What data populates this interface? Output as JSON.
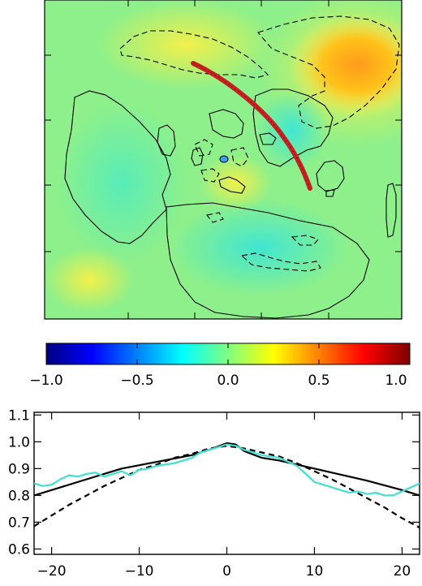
{
  "chart_data": [
    {
      "type": "heatmap",
      "title": "",
      "xlabel": "",
      "ylabel": "",
      "grid": false,
      "description_of_features": {
        "contours": [
          "solid",
          "dashed"
        ],
        "track": "red curved line"
      }
    },
    {
      "type": "heatmap",
      "title": "",
      "xlabel": "",
      "ylabel": "",
      "colormap": [
        "#00007f",
        "#0000ff",
        "#0080ff",
        "#00ffff",
        "#80ff80",
        "#ffff00",
        "#ff8000",
        "#ff0000",
        "#7f0000"
      ],
      "range": [
        -1.0,
        1.0
      ],
      "tick_labels": [
        "−1.0",
        "−0.5",
        "0.0",
        "0.5",
        "1.0"
      ],
      "tick_values": [
        -1.0,
        -0.5,
        0.0,
        0.5,
        1.0
      ]
    },
    {
      "type": "line",
      "title": "",
      "xlabel": "",
      "ylabel": "",
      "xlim": [
        -22,
        22
      ],
      "ylim": [
        0.58,
        1.11
      ],
      "xticks": [
        -20,
        -10,
        0,
        10,
        20
      ],
      "xtick_labels": [
        "−20",
        "−10",
        "0",
        "10",
        "20"
      ],
      "yticks": [
        0.6,
        0.7,
        0.8,
        0.9,
        1.0,
        1.1
      ],
      "ytick_labels": [
        "0.6",
        "0.7",
        "0.8",
        "0.9",
        "1.0",
        "1.1"
      ],
      "series": [
        {
          "color": "#000000",
          "dash": "solid",
          "x": [
            -22,
            -20,
            -16,
            -12,
            -8,
            -4,
            -2,
            0,
            1,
            2,
            4,
            6,
            8,
            12,
            16,
            20,
            22
          ],
          "y": [
            0.8,
            0.82,
            0.86,
            0.9,
            0.925,
            0.95,
            0.97,
            0.995,
            0.99,
            0.965,
            0.94,
            0.93,
            0.915,
            0.885,
            0.855,
            0.82,
            0.8
          ]
        },
        {
          "color": "#000000",
          "dash": "dashed",
          "x": [
            -22,
            -20,
            -18,
            -16,
            -14,
            -12,
            -10,
            -8,
            -6,
            -4,
            -2,
            0,
            2,
            4,
            6,
            8,
            10,
            12,
            14,
            16,
            18,
            20,
            22
          ],
          "y": [
            0.685,
            0.725,
            0.765,
            0.8,
            0.835,
            0.865,
            0.895,
            0.915,
            0.94,
            0.955,
            0.975,
            0.985,
            0.975,
            0.96,
            0.945,
            0.92,
            0.89,
            0.86,
            0.825,
            0.79,
            0.755,
            0.715,
            0.68
          ]
        },
        {
          "color": "#40e0d0",
          "dash": "solid",
          "x": [
            -22,
            -21,
            -20,
            -19,
            -18,
            -17,
            -16,
            -15,
            -14,
            -13,
            -12,
            -11,
            -10,
            -9,
            -8,
            -7,
            -6,
            -5,
            -4,
            -3,
            -2,
            -1,
            0,
            1,
            2,
            3,
            4,
            5,
            6,
            7,
            8,
            9,
            10,
            11,
            12,
            13,
            14,
            15,
            16,
            17,
            18,
            19,
            20,
            21,
            22
          ],
          "y": [
            0.845,
            0.835,
            0.84,
            0.86,
            0.875,
            0.87,
            0.88,
            0.885,
            0.87,
            0.88,
            0.89,
            0.875,
            0.895,
            0.9,
            0.91,
            0.915,
            0.92,
            0.93,
            0.94,
            0.96,
            0.97,
            0.98,
            0.99,
            0.985,
            0.97,
            0.96,
            0.95,
            0.945,
            0.94,
            0.925,
            0.91,
            0.88,
            0.85,
            0.84,
            0.83,
            0.82,
            0.81,
            0.815,
            0.805,
            0.81,
            0.8,
            0.8,
            0.815,
            0.83,
            0.845
          ]
        }
      ]
    }
  ]
}
